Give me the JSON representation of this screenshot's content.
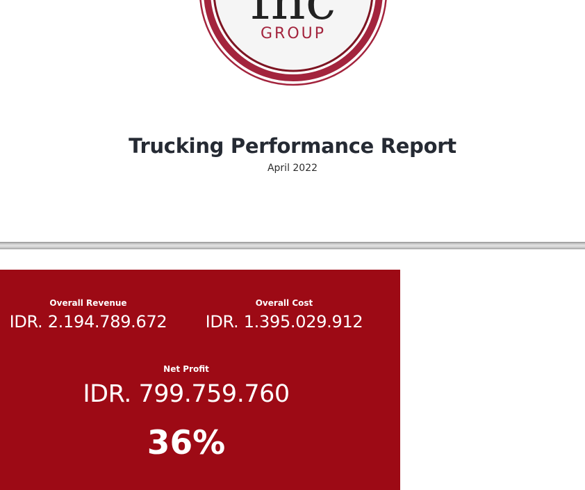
{
  "logo": {
    "wordmark": "fnc",
    "tagline": "GROUP",
    "ring_color": "#a3243d",
    "inner_ring_color": "#7d1422"
  },
  "report": {
    "title": "Trucking Performance Report",
    "period": "April 2022"
  },
  "kpis": {
    "panel_color": "#9d0a15",
    "revenue": {
      "label": "Overall Revenue",
      "value": "IDR. 2.194.789.672"
    },
    "cost": {
      "label": "Overall Cost",
      "value": "IDR. 1.395.029.912"
    },
    "net_profit": {
      "label": "Net Profit",
      "value": "IDR. 799.759.760"
    },
    "margin": "36%"
  }
}
